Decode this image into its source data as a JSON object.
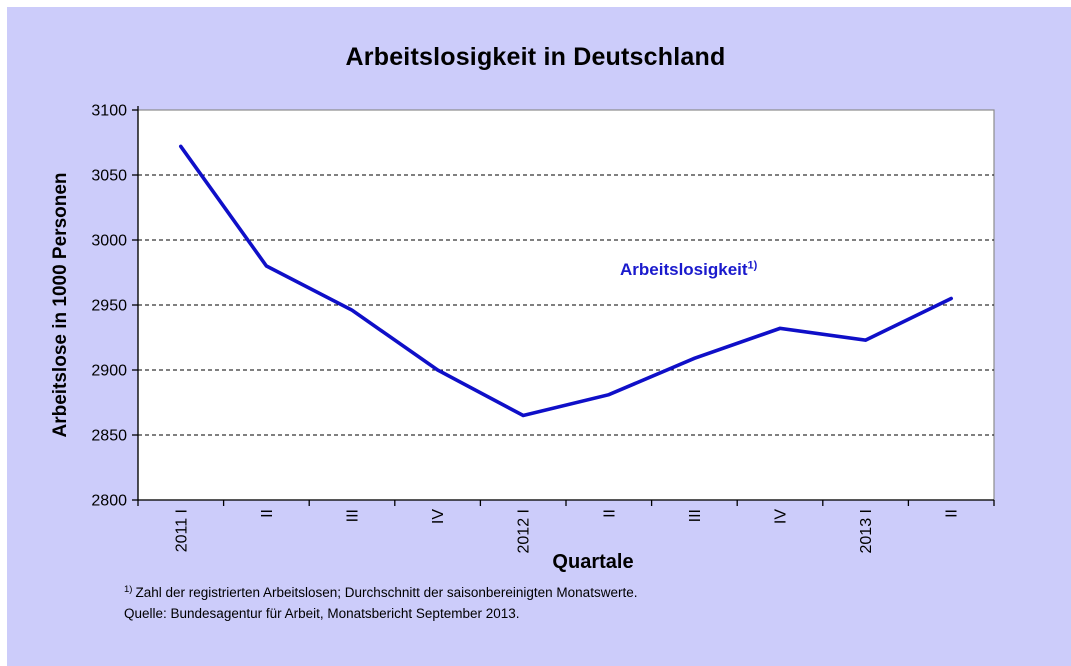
{
  "panel": {
    "background": "#ccccfa"
  },
  "chart_data": {
    "type": "line",
    "title": "Arbeitslosigkeit in Deutschland",
    "xlabel": "Quartale",
    "ylabel": "Arbeitslose in 1000 Personen",
    "categories": [
      "2011 I",
      "II",
      "III",
      "IV",
      "2012 I",
      "II",
      "III",
      "IV",
      "2013 I",
      "II"
    ],
    "series": [
      {
        "name": "Arbeitslosigkeit",
        "values": [
          3072,
          2980,
          2946,
          2900,
          2865,
          2881,
          2909,
          2932,
          2923,
          2955
        ]
      }
    ],
    "ylim": [
      2800,
      3100
    ],
    "yticks": [
      2800,
      2850,
      2900,
      2950,
      3000,
      3050,
      3100
    ],
    "grid": "horizontal-dashed",
    "legend_position": "none",
    "plot_background": "#ffffff",
    "plot_border_color": "#8c8c8c",
    "line_color": "#0f0fc8",
    "annotation": {
      "text": "Arbeitslosigkeit",
      "sup": "1)",
      "color": "#1a1acd"
    }
  },
  "footnotes": {
    "note_sup": "1)",
    "note_text": "Zahl der registrierten Arbeitslosen; Durchschnitt der saisonbereinigten Monatswerte.",
    "source": "Quelle: Bundesagentur für Arbeit, Monatsbericht September 2013."
  }
}
